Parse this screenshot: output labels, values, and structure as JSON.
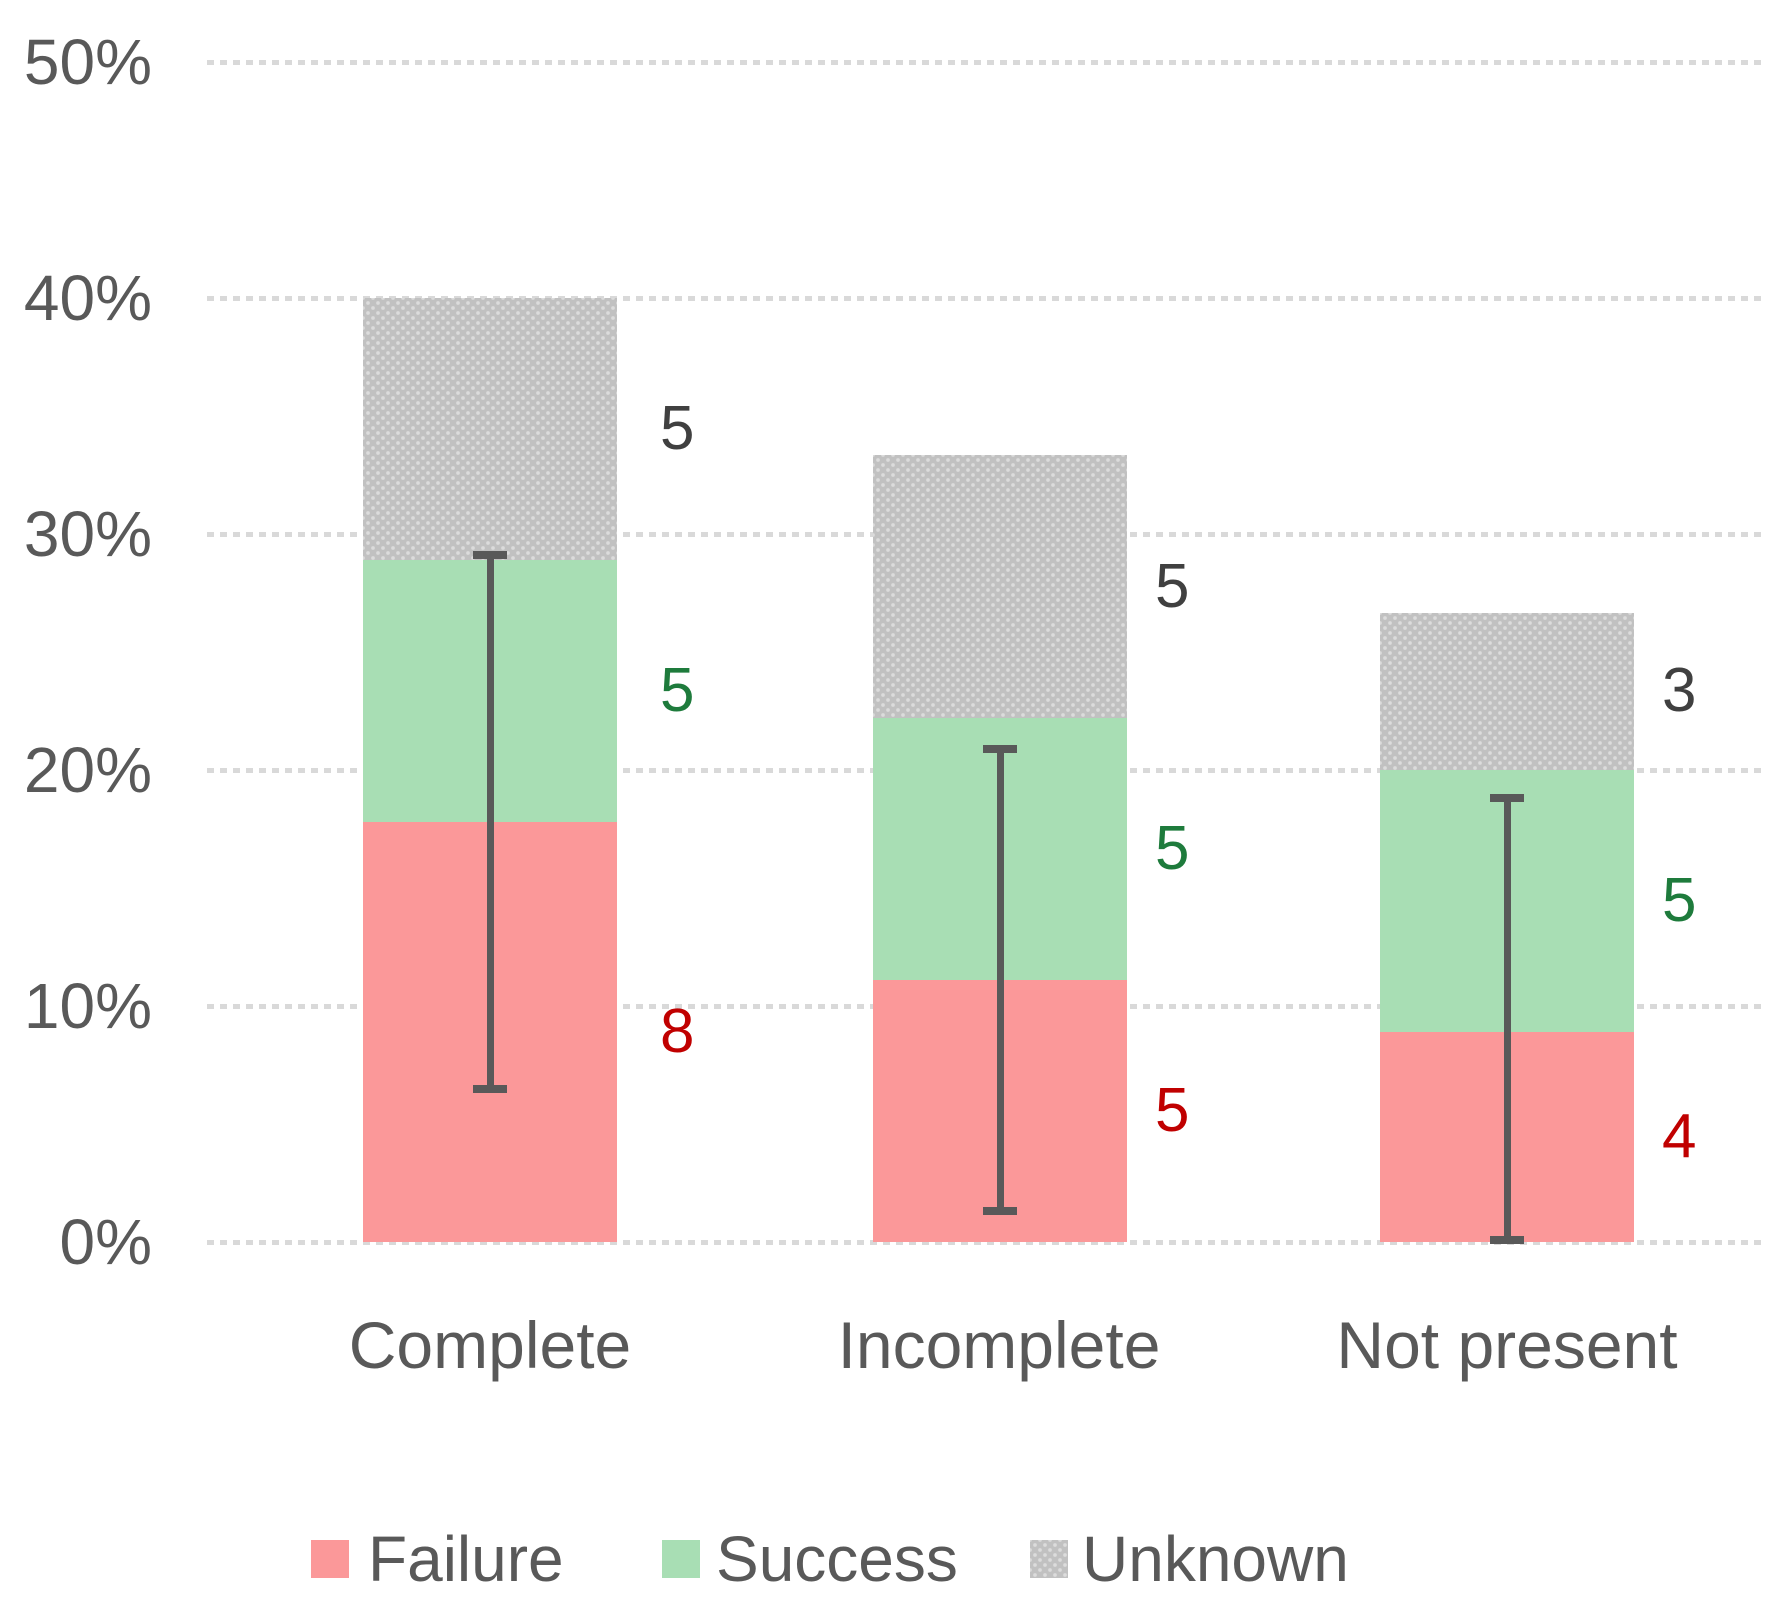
{
  "chart_data": {
    "type": "bar",
    "stacked": true,
    "title": "",
    "xlabel": "",
    "ylabel": "",
    "categories": [
      "Complete",
      "Incomplete",
      "Not present"
    ],
    "series": [
      {
        "name": "Failure",
        "values": [
          8,
          5,
          4
        ],
        "pct": [
          17.78,
          11.11,
          8.89
        ],
        "color": "#FB9899",
        "label_color": "#C00000",
        "patterned": false
      },
      {
        "name": "Success",
        "values": [
          5,
          5,
          5
        ],
        "pct": [
          11.11,
          11.11,
          11.11
        ],
        "color": "#A8DEB4",
        "label_color": "#1E7B3C",
        "patterned": false
      },
      {
        "name": "Unknown",
        "values": [
          5,
          5,
          3
        ],
        "pct": [
          11.11,
          11.11,
          6.67
        ],
        "color": "#C1C1C1",
        "pattern_dot_color": "#DCDCDC",
        "label_color": "#404040",
        "patterned": true
      }
    ],
    "bar_totals_pct": [
      40.0,
      33.3,
      26.7
    ],
    "error_bars": [
      {
        "anchor_series": "Failure",
        "center_pct": 17.8,
        "low_pct": 6.5,
        "high_pct": 29.1
      },
      {
        "anchor_series": "Failure",
        "center_pct": 11.1,
        "low_pct": 1.3,
        "high_pct": 20.9
      },
      {
        "anchor_series": "Failure",
        "center_pct": 8.9,
        "low_pct": 0.1,
        "high_pct": 18.8
      }
    ],
    "y_axis": {
      "min_pct": 0,
      "max_pct": 50,
      "tick_step_pct": 10,
      "tick_labels": [
        "50%",
        "40%",
        "30%",
        "20%",
        "10%",
        "0%"
      ]
    },
    "legend": {
      "position": "bottom",
      "items": [
        "Failure",
        "Success",
        "Unknown"
      ]
    },
    "grid": true,
    "colors": {
      "gridline": "#D9D9D9",
      "error_bar": "#595959",
      "axis_text": "#595959",
      "category_text": "#595959",
      "legend_text": "#595959",
      "background": "#FFFFFF"
    }
  }
}
